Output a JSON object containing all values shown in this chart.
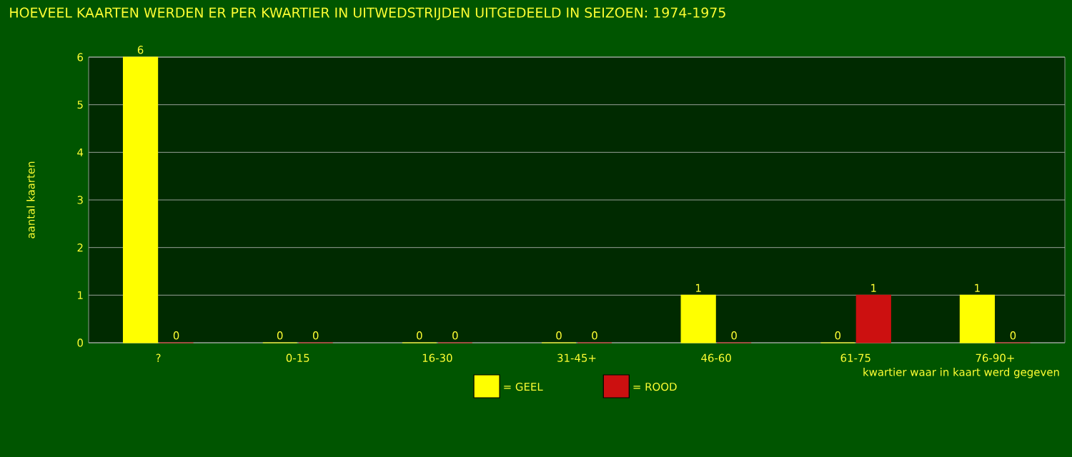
{
  "chart_data": {
    "type": "bar",
    "title": "HOEVEEL KAARTEN WERDEN ER PER KWARTIER IN UITWEDSTRIJDEN UITGEDEELD IN SEIZOEN: 1974-1975",
    "xlabel": "kwartier waar in kaart werd gegeven",
    "ylabel": "aantal kaarten",
    "categories": [
      "?",
      "0-15",
      "16-30",
      "31-45+",
      "46-60",
      "61-75",
      "76-90+"
    ],
    "series": [
      {
        "name": "= GEEL",
        "color": "#ffff00",
        "values": [
          6,
          0,
          0,
          0,
          1,
          0,
          1
        ]
      },
      {
        "name": "= ROOD",
        "color": "#cc1010",
        "values": [
          0,
          0,
          0,
          0,
          0,
          1,
          0
        ]
      }
    ],
    "ylim": [
      0,
      6
    ],
    "yticks": [
      0,
      1,
      2,
      3,
      4,
      5,
      6
    ],
    "grid": "y",
    "legend": "bottom",
    "data_labels": true
  }
}
